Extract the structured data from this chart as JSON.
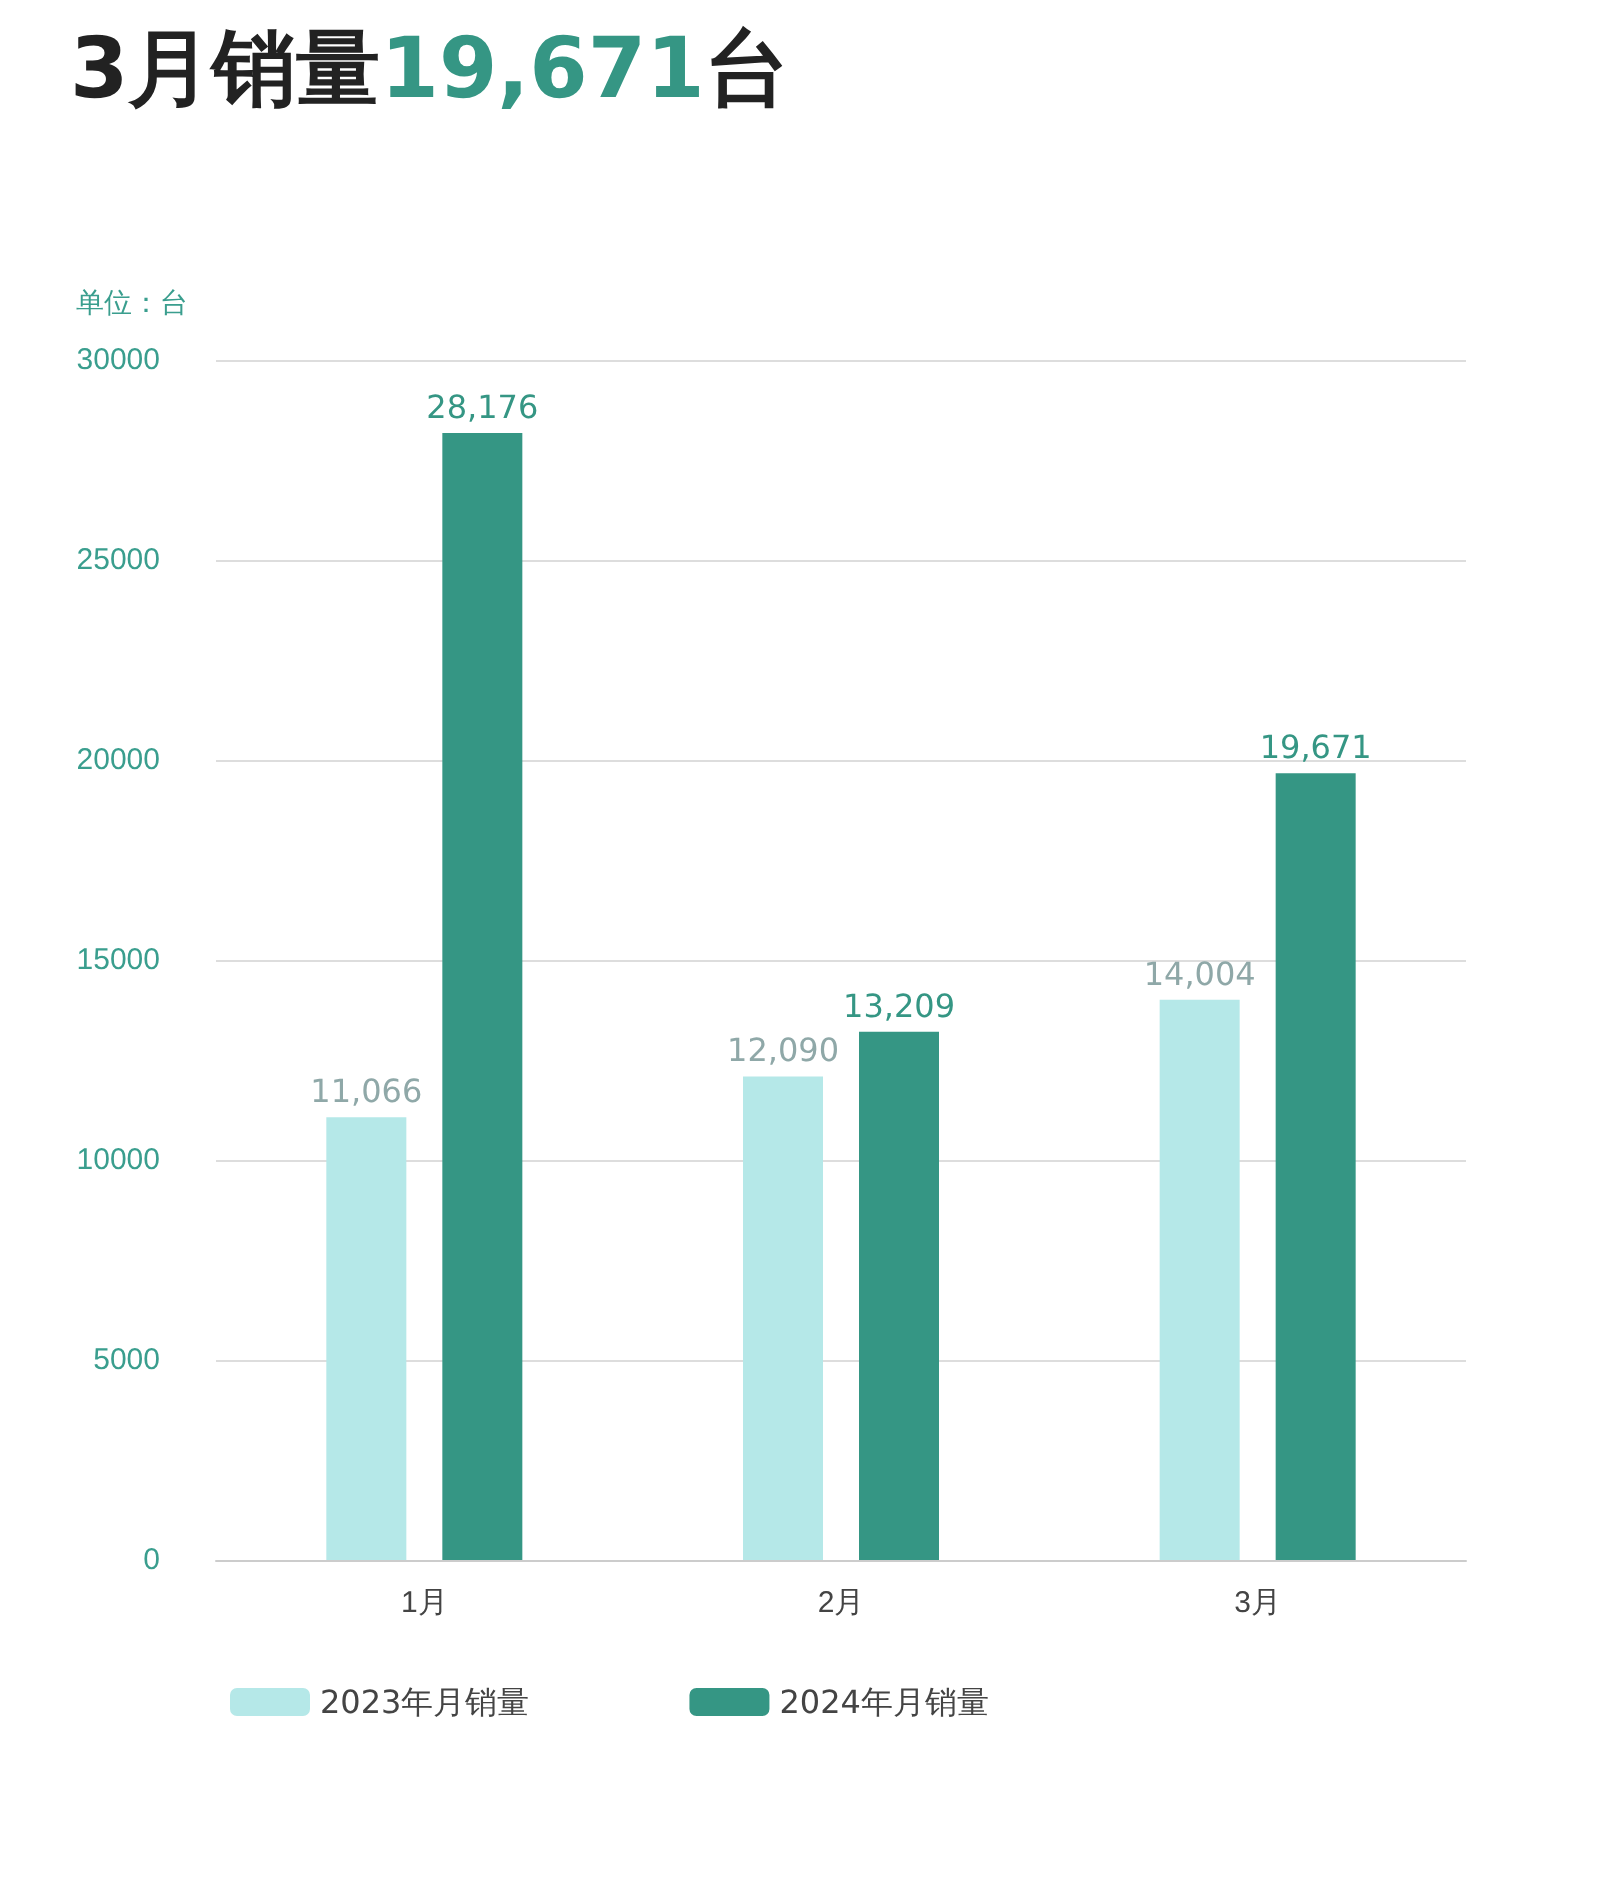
{
  "chart_data": {
    "type": "bar",
    "title": "3月销量19,671台",
    "ylabel": "单位：台",
    "categories": [
      "1月",
      "2月",
      "3月"
    ],
    "series": [
      {
        "name": "2023年月销量",
        "color": "#b5e8e8",
        "values": [
          11066,
          12090,
          14004
        ],
        "value_labels": [
          "11,066",
          "12,090",
          "14,004"
        ]
      },
      {
        "name": "2024年月销量",
        "color": "#359684",
        "values": [
          28176,
          13209,
          19671
        ],
        "value_labels": [
          "28,176",
          "13,209",
          "19,671"
        ]
      }
    ],
    "ylim": [
      0,
      30000
    ],
    "yticks": [
      0,
      5000,
      10000,
      15000,
      20000,
      25000,
      30000
    ],
    "grid": "y",
    "legend": "bottom"
  }
}
